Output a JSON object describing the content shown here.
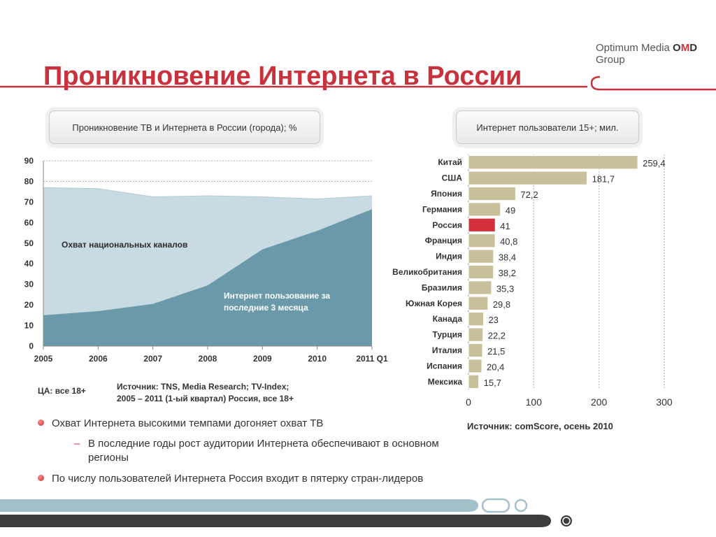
{
  "title": "Проникновение Интернета в России",
  "brand": {
    "line1_prefix": "Optimum Media ",
    "line1_mark_o": "O",
    "line1_mark_m": "M",
    "line1_mark_d": "D",
    "line2": "Group"
  },
  "left_panel": {
    "heading": "Проникновение ТВ и Интернета в России (города); %",
    "ca_note": "ЦА: все 18+",
    "source_line1": "Источник: TNS, Media Research; TV-Index;",
    "source_line2": "2005 – 2011 (1-ый квартал) Россия, все 18+"
  },
  "right_panel": {
    "heading": "Интернет пользователи 15+; мил.",
    "source": "Источник: comScore, осень 2010"
  },
  "bullets": {
    "b1": "Охват Интернета высокими темпами догоняет охват ТВ",
    "b1_sub": "В последние годы рост аудитории Интернета обеспечивают в основном регионы",
    "b2": "По числу пользователей Интернета Россия входит в пятерку стран-лидеров"
  },
  "chart_data": [
    {
      "type": "area",
      "x": [
        "2005",
        "2006",
        "2007",
        "2008",
        "2009",
        "2010",
        "2011 Q1"
      ],
      "ylim": [
        0,
        90
      ],
      "yticks": [
        0,
        10,
        20,
        30,
        40,
        50,
        60,
        70,
        80,
        90
      ],
      "grid": true,
      "series": [
        {
          "name": "Охват национальных каналов",
          "values": [
            77,
            76.5,
            72.5,
            73,
            72.5,
            71.5,
            73
          ],
          "color": "#c9dbe2"
        },
        {
          "name": "Интернет пользование за последние 3 месяца",
          "values": [
            15,
            17,
            20.5,
            29.5,
            47,
            56,
            66.5
          ],
          "color": "#6a9aa9"
        }
      ],
      "series_label_lines": {
        "tv": [
          "Охват национальных каналов"
        ],
        "internet": [
          "Интернет пользование за",
          "последние 3 месяца"
        ]
      }
    },
    {
      "type": "bar",
      "orientation": "horizontal",
      "categories": [
        "Китай",
        "США",
        "Япония",
        "Германия",
        "Россия",
        "Франция",
        "Индия",
        "Великобритания",
        "Бразилия",
        "Южная Корея",
        "Канада",
        "Турция",
        "Италия",
        "Испания",
        "Мексика"
      ],
      "values": [
        259.4,
        181.7,
        72.2,
        49,
        41,
        40.8,
        38.4,
        38.2,
        35.3,
        29.8,
        23,
        22.2,
        21.5,
        20.4,
        15.7
      ],
      "value_labels": [
        "259,4",
        "181,7",
        "72,2",
        "49",
        "41",
        "40,8",
        "38,4",
        "38,2",
        "35,3",
        "29,8",
        "23",
        "22,2",
        "21,5",
        "20,4",
        "15,7"
      ],
      "xlim": [
        0,
        300
      ],
      "xticks": [
        0,
        100,
        200,
        300
      ],
      "bar_color": "#c8c09a",
      "highlight_category": "Россия",
      "highlight_color": "#d3303c",
      "grid": true
    }
  ]
}
